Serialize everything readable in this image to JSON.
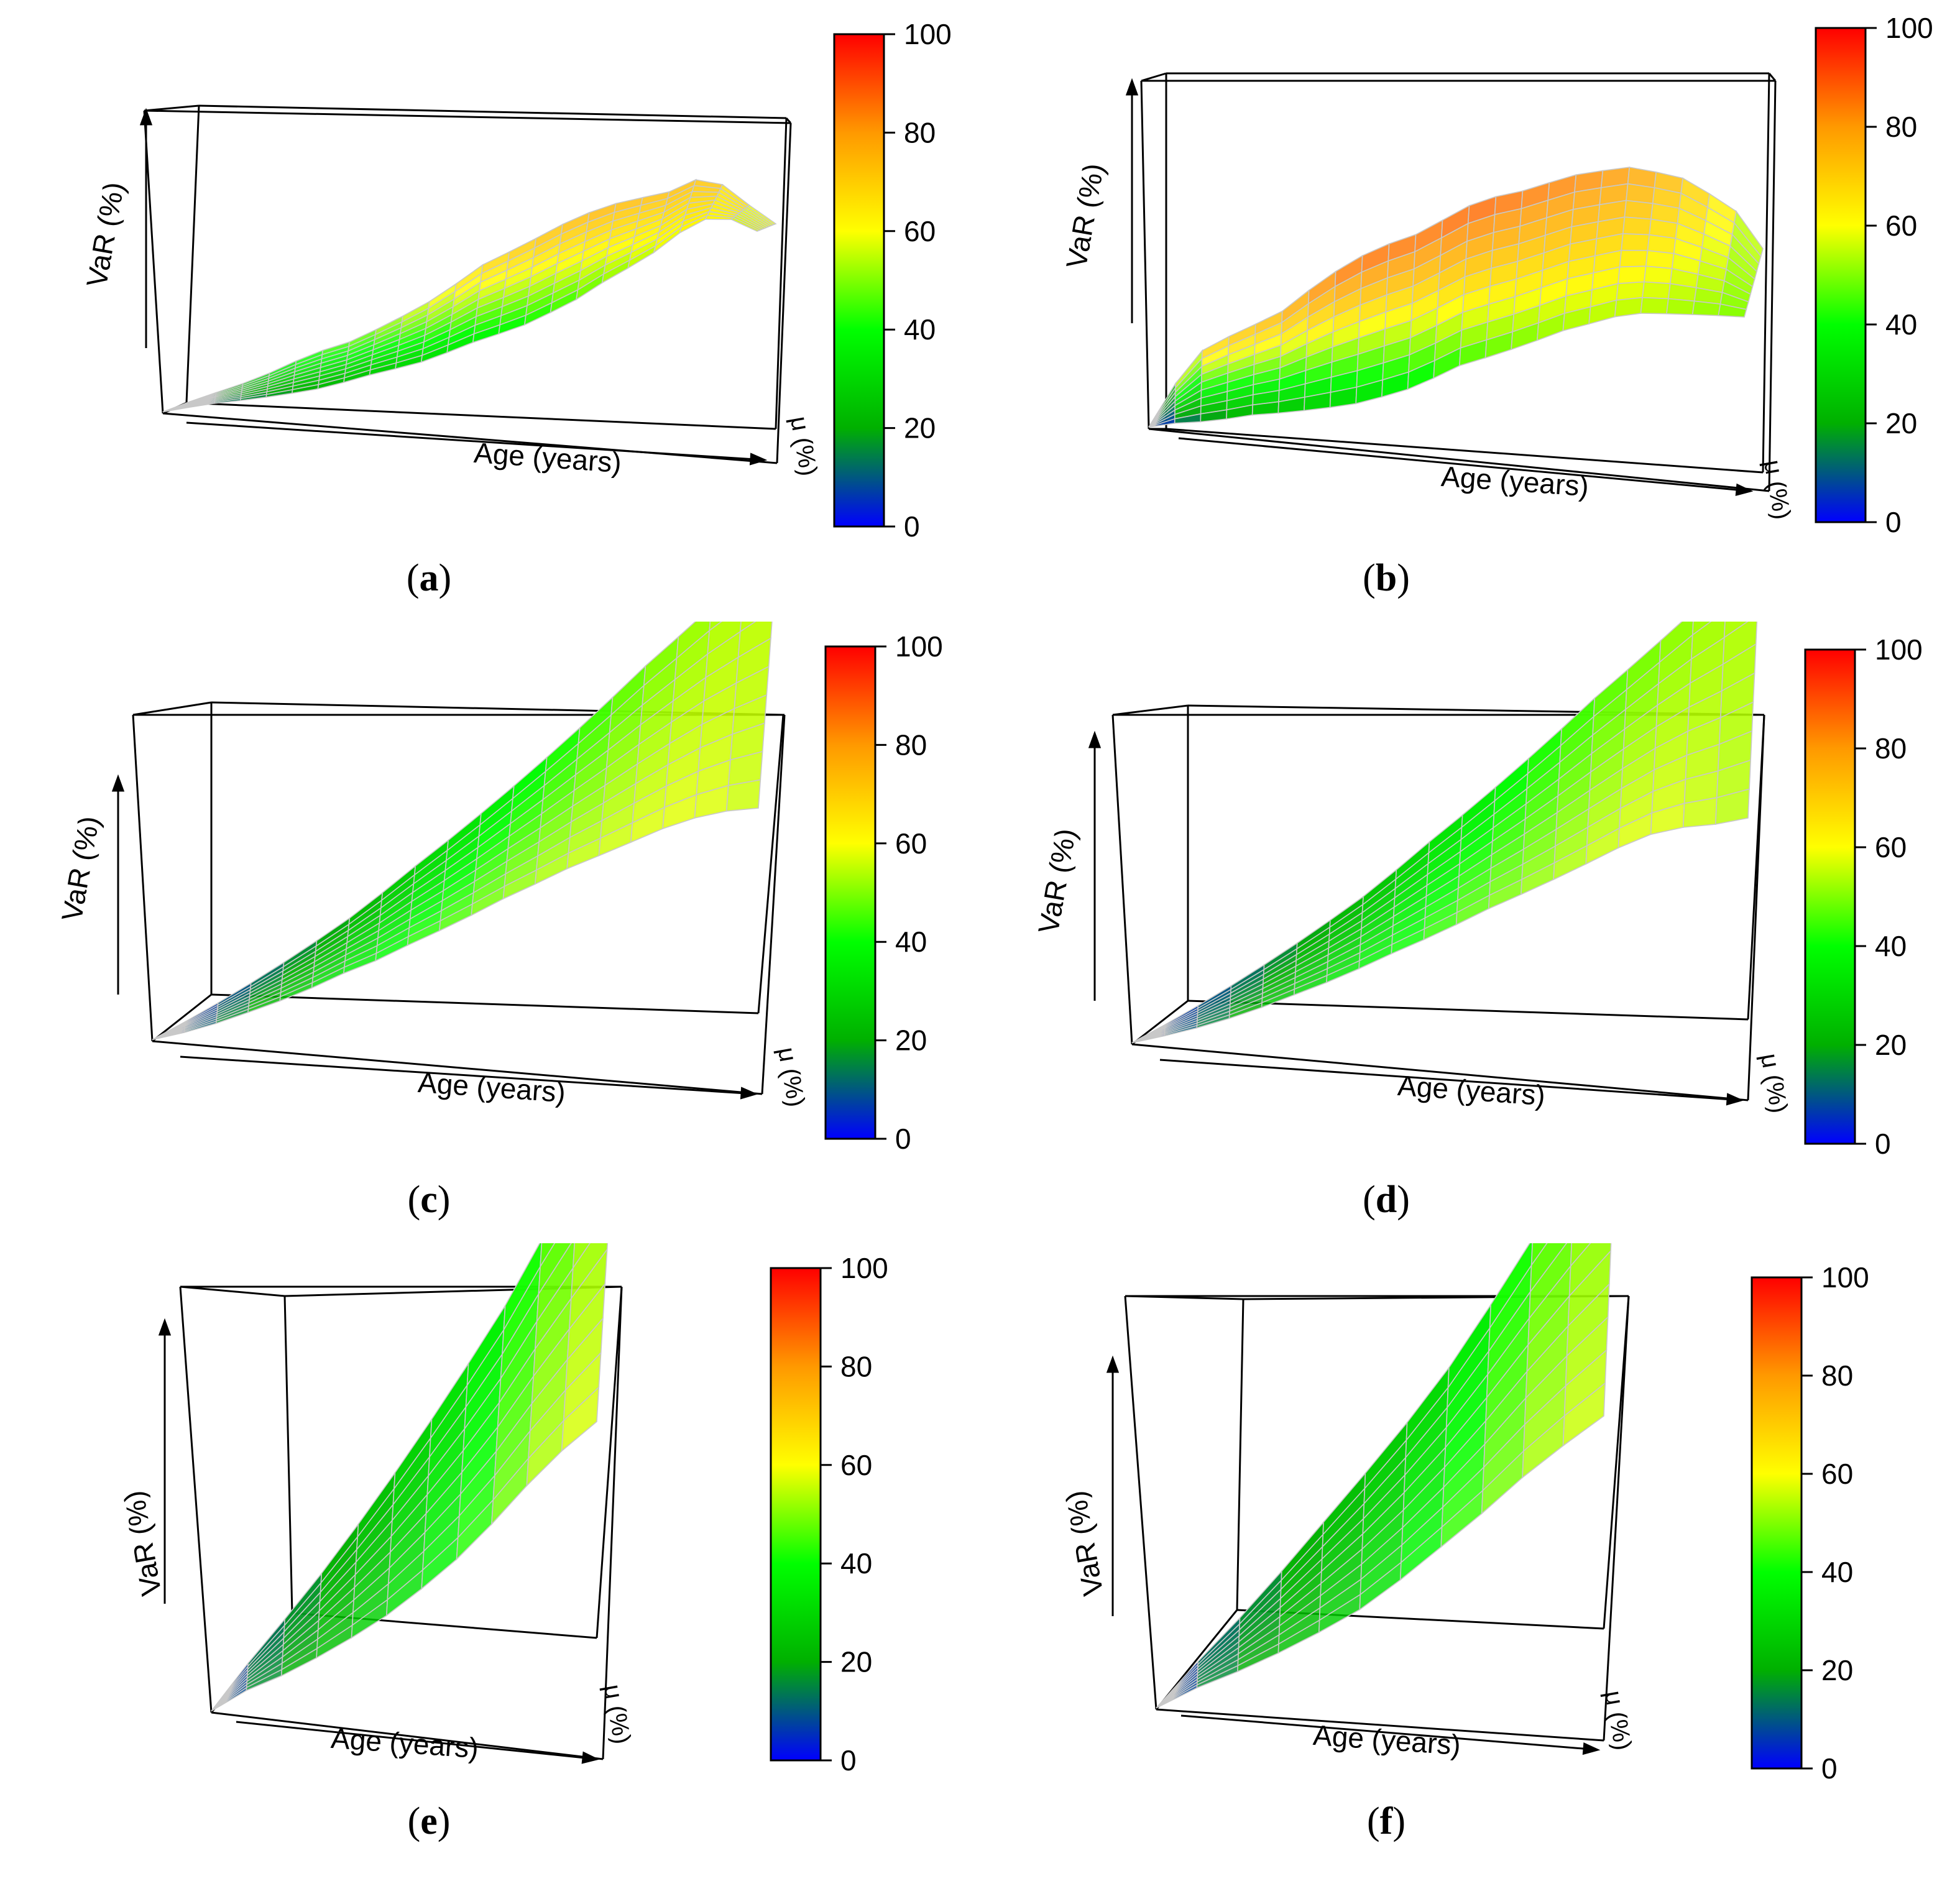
{
  "figure": {
    "panels": [
      {
        "id": "a",
        "label_open": "(",
        "label_letter": "a",
        "label_close": ")",
        "xlabel": "Age (years)",
        "ylabel": "μ (%)",
        "zlabel": "VaR (%)"
      },
      {
        "id": "b",
        "label_open": "(",
        "label_letter": "b",
        "label_close": ")",
        "xlabel": "Age (years)",
        "ylabel": "μ (%)",
        "zlabel": "VaR (%)"
      },
      {
        "id": "c",
        "label_open": "(",
        "label_letter": "c",
        "label_close": ")",
        "xlabel": "Age (years)",
        "ylabel": "μ (%)",
        "zlabel": "VaR (%)"
      },
      {
        "id": "d",
        "label_open": "(",
        "label_letter": "d",
        "label_close": ")",
        "xlabel": "Age (years)",
        "ylabel": "μ (%)",
        "zlabel": "VaR (%)"
      },
      {
        "id": "e",
        "label_open": "(",
        "label_letter": "e",
        "label_close": ")",
        "xlabel": "Age (years)",
        "ylabel": "μ (%)",
        "zlabel": "VaR (%)"
      },
      {
        "id": "f",
        "label_open": "(",
        "label_letter": "f",
        "label_close": ")",
        "xlabel": "Age (years)",
        "ylabel": "μ (%)",
        "zlabel": "VaR (%)"
      }
    ]
  },
  "chart_data": [
    {
      "panel": "a",
      "type": "surface3d",
      "xlabel": "Age (years)",
      "ylabel": "μ (%)",
      "zlabel": "VaR (%)",
      "colorbar": {
        "ticks": [
          "0",
          "20",
          "40",
          "60",
          "80",
          "100"
        ],
        "range": [
          0,
          100
        ],
        "colors": [
          "#0000ff",
          "#00b000",
          "#00ff00",
          "#ffff00",
          "#ff9900",
          "#ff0000"
        ]
      },
      "back_ridge_var": [
        2,
        14,
        22,
        28,
        34,
        40,
        44,
        46,
        50,
        54,
        58,
        63,
        68,
        70,
        72,
        74,
        75,
        75,
        74,
        73,
        74,
        70,
        62,
        55
      ],
      "front_ridge_var": [
        2,
        8,
        12,
        14,
        16,
        18,
        20,
        23,
        26,
        28,
        30,
        33,
        36,
        38,
        40,
        43,
        46,
        50,
        53,
        56,
        60,
        62,
        60,
        55
      ]
    },
    {
      "panel": "b",
      "type": "surface3d",
      "xlabel": "Age (years)",
      "ylabel": "μ (%)",
      "zlabel": "VaR (%)",
      "colorbar": {
        "ticks": [
          "0",
          "20",
          "40",
          "60",
          "80",
          "100"
        ],
        "range": [
          0,
          100
        ],
        "colors": [
          "#0000ff",
          "#00b000",
          "#00ff00",
          "#ffff00",
          "#ff9900",
          "#ff0000"
        ]
      },
      "back_ridge_var": [
        2,
        45,
        68,
        72,
        74,
        76,
        82,
        86,
        88,
        88,
        87,
        88,
        89,
        88,
        86,
        85,
        84,
        82,
        80,
        76,
        72,
        66,
        60,
        50
      ],
      "front_ridge_var": [
        2,
        10,
        14,
        18,
        22,
        24,
        26,
        28,
        30,
        33,
        36,
        40,
        44,
        46,
        48,
        50,
        52,
        53,
        54,
        54,
        53,
        52,
        51,
        50
      ]
    },
    {
      "panel": "c",
      "type": "surface3d",
      "xlabel": "Age (years)",
      "ylabel": "μ (%)",
      "zlabel": "VaR (%)",
      "colorbar": {
        "ticks": [
          "0",
          "20",
          "40",
          "60",
          "80",
          "100"
        ],
        "range": [
          0,
          100
        ],
        "colors": [
          "#0000ff",
          "#00b000",
          "#00ff00",
          "#ffff00",
          "#ff9900",
          "#ff0000"
        ]
      },
      "back_ridge_var": [
        2,
        8,
        14,
        20,
        25,
        30,
        35,
        38,
        42,
        45,
        48,
        51,
        53,
        55,
        56,
        57,
        58,
        58,
        57,
        55
      ],
      "front_ridge_var": [
        2,
        5,
        8,
        11,
        14,
        17,
        20,
        24,
        28,
        31,
        34,
        37,
        40,
        43,
        46,
        49,
        51,
        53,
        54,
        55
      ]
    },
    {
      "panel": "d",
      "type": "surface3d",
      "xlabel": "Age (years)",
      "ylabel": "μ (%)",
      "zlabel": "VaR (%)",
      "colorbar": {
        "ticks": [
          "0",
          "20",
          "40",
          "60",
          "80",
          "100"
        ],
        "range": [
          0,
          100
        ],
        "colors": [
          "#0000ff",
          "#00b000",
          "#00ff00",
          "#ffff00",
          "#ff9900",
          "#ff0000"
        ]
      },
      "back_ridge_var": [
        2,
        8,
        13,
        18,
        23,
        28,
        32,
        36,
        40,
        43,
        46,
        49,
        51,
        53,
        55,
        57,
        58,
        57,
        55,
        54
      ],
      "front_ridge_var": [
        2,
        5,
        8,
        11,
        14,
        17,
        20,
        23,
        27,
        31,
        34,
        37,
        40,
        43,
        46,
        48,
        50,
        52,
        53,
        54
      ]
    },
    {
      "panel": "e",
      "type": "surface3d",
      "xlabel": "Age (years)",
      "ylabel": "μ (%)",
      "zlabel": "VaR (%)",
      "colorbar": {
        "ticks": [
          "0",
          "20",
          "40",
          "60",
          "80",
          "100"
        ],
        "range": [
          0,
          100
        ],
        "colors": [
          "#0000ff",
          "#00b000",
          "#00ff00",
          "#ffff00",
          "#ff9900",
          "#ff0000"
        ]
      },
      "back_ridge_var": [
        2,
        15,
        18,
        22,
        26,
        30,
        35,
        40,
        46,
        52,
        56,
        58
      ],
      "front_ridge_var": [
        2,
        12,
        15,
        18,
        22,
        26,
        30,
        34,
        38,
        44,
        48,
        52
      ]
    },
    {
      "panel": "f",
      "type": "surface3d",
      "xlabel": "Age (years)",
      "ylabel": "μ (%)",
      "zlabel": "VaR (%)",
      "colorbar": {
        "ticks": [
          "0",
          "20",
          "40",
          "60",
          "80",
          "100"
        ],
        "range": [
          0,
          100
        ],
        "colors": [
          "#0000ff",
          "#00b000",
          "#00ff00",
          "#ffff00",
          "#ff9900",
          "#ff0000"
        ]
      },
      "back_ridge_var": [
        2,
        14,
        18,
        22,
        26,
        30,
        36,
        42,
        47,
        52,
        55,
        57
      ],
      "front_ridge_var": [
        2,
        11,
        14,
        18,
        22,
        25,
        28,
        32,
        38,
        44,
        48,
        50
      ]
    }
  ]
}
